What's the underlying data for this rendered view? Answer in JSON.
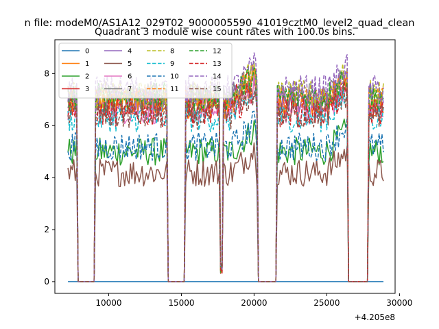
{
  "chart_data": {
    "type": "line",
    "suptitle": "n file: modeM0/AS1A12_029T02_9000005590_41019cztM0_level2_quad_clean",
    "title": "Quadrant 3 module wise count rates with 100.0s bins.",
    "xlabel": "",
    "ylabel": "",
    "x_offset_label": "+4.205e8",
    "xlim": [
      6300,
      29700
    ],
    "ylim": [
      -0.45,
      9.3
    ],
    "xticks": [
      10000,
      15000,
      20000,
      25000,
      30000
    ],
    "xtick_labels": [
      "10000",
      "15000",
      "20000",
      "25000",
      "30000"
    ],
    "yticks": [
      0,
      2,
      4,
      6,
      8
    ],
    "ytick_labels": [
      "0",
      "2",
      "4",
      "6",
      "8"
    ],
    "grid": false,
    "legend_position": "upper-left",
    "legend_columns": 4,
    "x_range": [
      7200,
      28900
    ],
    "bin_s": 100,
    "gaps": [
      [
        7900,
        9000
      ],
      [
        14100,
        15200
      ],
      [
        20300,
        21500
      ],
      [
        26500,
        27800
      ]
    ],
    "spike": [
      17700,
      17800
    ],
    "series": [
      {
        "name": "0",
        "color": "#1f77b4",
        "dash": "solid",
        "level": 0.0
      },
      {
        "name": "1",
        "color": "#ff7f0e",
        "dash": "solid",
        "level": 6.8
      },
      {
        "name": "2",
        "color": "#2ca02c",
        "dash": "solid",
        "level": 5.0
      },
      {
        "name": "3",
        "color": "#d62728",
        "dash": "solid",
        "level": 6.9
      },
      {
        "name": "4",
        "color": "#9467bd",
        "dash": "solid",
        "level": 7.0
      },
      {
        "name": "5",
        "color": "#8c564b",
        "dash": "solid",
        "level": 4.2
      },
      {
        "name": "6",
        "color": "#e377c2",
        "dash": "solid",
        "level": 6.6
      },
      {
        "name": "7",
        "color": "#7f7f7f",
        "dash": "solid",
        "level": 7.1
      },
      {
        "name": "8",
        "color": "#bcbd22",
        "dash": "dashed",
        "level": 7.2
      },
      {
        "name": "9",
        "color": "#17becf",
        "dash": "dashed",
        "level": 6.3
      },
      {
        "name": "10",
        "color": "#1f77b4",
        "dash": "dashed",
        "level": 5.2
      },
      {
        "name": "11",
        "color": "#ff7f0e",
        "dash": "dashed",
        "level": 7.0
      },
      {
        "name": "12",
        "color": "#2ca02c",
        "dash": "dashed",
        "level": 7.1
      },
      {
        "name": "13",
        "color": "#d62728",
        "dash": "dashed",
        "level": 6.5
      },
      {
        "name": "14",
        "color": "#9467bd",
        "dash": "dashed",
        "level": 7.4
      },
      {
        "name": "15",
        "color": "#8c564b",
        "dash": "dashed",
        "level": 6.4
      }
    ]
  }
}
